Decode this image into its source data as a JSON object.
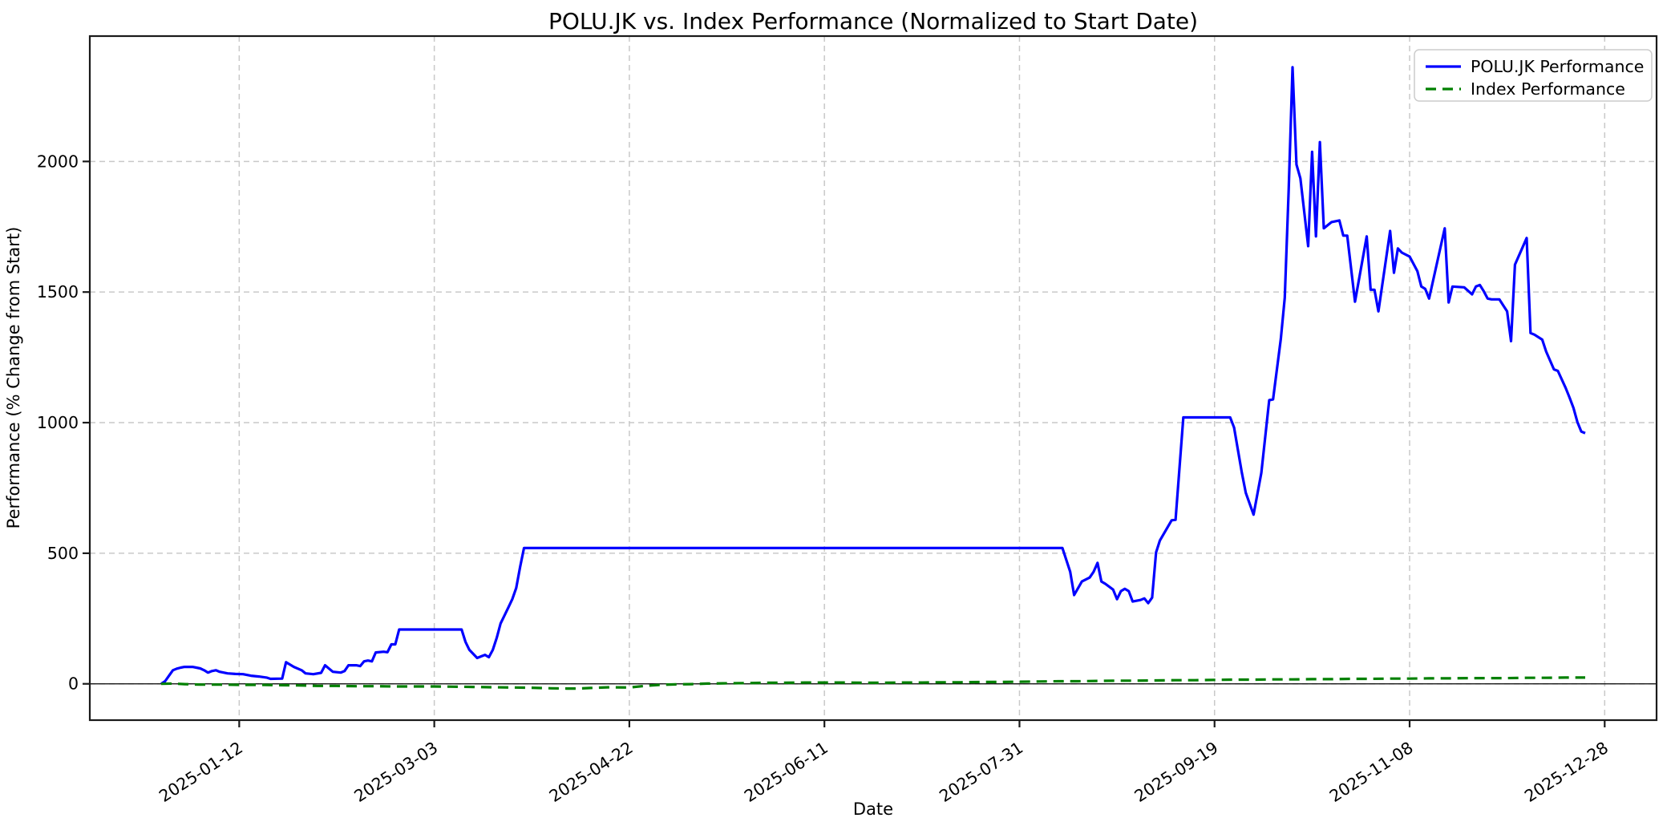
{
  "chart_data": {
    "type": "line",
    "title": "POLU.JK vs. Index Performance (Normalized to Start Date)",
    "xlabel": "Date",
    "ylabel": "Performance (% Change from Start)",
    "grid": true,
    "legend_position": "upper right",
    "background": "#ffffff",
    "grid_color": "#c9c9c9",
    "spine_color": "#1a1a1a",
    "zero_line_color": "#000000",
    "xlim_days": [
      -18.3,
      383.3
    ],
    "ylim": [
      -139,
      2480
    ],
    "x_ticks": [
      {
        "day": 20,
        "label": "2025-01-12"
      },
      {
        "day": 70,
        "label": "2025-03-03"
      },
      {
        "day": 120,
        "label": "2025-04-22"
      },
      {
        "day": 170,
        "label": "2025-06-11"
      },
      {
        "day": 220,
        "label": "2025-07-31"
      },
      {
        "day": 270,
        "label": "2025-09-19"
      },
      {
        "day": 320,
        "label": "2025-11-08"
      },
      {
        "day": 370,
        "label": "2025-12-28"
      }
    ],
    "y_ticks": [
      {
        "value": 0,
        "label": "0"
      },
      {
        "value": 500,
        "label": "500"
      },
      {
        "value": 1000,
        "label": "1000"
      },
      {
        "value": 1500,
        "label": "1500"
      },
      {
        "value": 2000,
        "label": "2000"
      }
    ],
    "series": [
      {
        "name": "POLU.JK Performance",
        "color": "#0000ff",
        "style": "solid",
        "points": [
          [
            0,
            0
          ],
          [
            1,
            10
          ],
          [
            2,
            31
          ],
          [
            3,
            52
          ],
          [
            4,
            58
          ],
          [
            5,
            62
          ],
          [
            6,
            65
          ],
          [
            8,
            65
          ],
          [
            9,
            62
          ],
          [
            10,
            59
          ],
          [
            11,
            52
          ],
          [
            12,
            43
          ],
          [
            13,
            49
          ],
          [
            14,
            52
          ],
          [
            15,
            46
          ],
          [
            17,
            40
          ],
          [
            19,
            38
          ],
          [
            21,
            37
          ],
          [
            23,
            31
          ],
          [
            25,
            28
          ],
          [
            27,
            24
          ],
          [
            28,
            19
          ],
          [
            31,
            20
          ],
          [
            32,
            83
          ],
          [
            34,
            65
          ],
          [
            36,
            52
          ],
          [
            37,
            40
          ],
          [
            39,
            37
          ],
          [
            41,
            42
          ],
          [
            42,
            71
          ],
          [
            44,
            46
          ],
          [
            46,
            43
          ],
          [
            47,
            49
          ],
          [
            48,
            71
          ],
          [
            50,
            71
          ],
          [
            51,
            68
          ],
          [
            52,
            86
          ],
          [
            53,
            89
          ],
          [
            54,
            86
          ],
          [
            55,
            120
          ],
          [
            57,
            123
          ],
          [
            58,
            121
          ],
          [
            59,
            151
          ],
          [
            60,
            151
          ],
          [
            61,
            208
          ],
          [
            77,
            208
          ],
          [
            78,
            160
          ],
          [
            79,
            130
          ],
          [
            81,
            99
          ],
          [
            82,
            105
          ],
          [
            83,
            111
          ],
          [
            84,
            102
          ],
          [
            85,
            130
          ],
          [
            86,
            176
          ],
          [
            87,
            231
          ],
          [
            88,
            262
          ],
          [
            89,
            293
          ],
          [
            90,
            324
          ],
          [
            91,
            367
          ],
          [
            92,
            448
          ],
          [
            93,
            520
          ],
          [
            231,
            520
          ],
          [
            233,
            429
          ],
          [
            234,
            340
          ],
          [
            236,
            392
          ],
          [
            238,
            407
          ],
          [
            239,
            429
          ],
          [
            240,
            463
          ],
          [
            241,
            392
          ],
          [
            242,
            383
          ],
          [
            244,
            361
          ],
          [
            245,
            324
          ],
          [
            246,
            355
          ],
          [
            247,
            364
          ],
          [
            248,
            355
          ],
          [
            249,
            315
          ],
          [
            251,
            321
          ],
          [
            252,
            327
          ],
          [
            253,
            309
          ],
          [
            254,
            330
          ],
          [
            255,
            503
          ],
          [
            256,
            549
          ],
          [
            259,
            626
          ],
          [
            260,
            628
          ],
          [
            262,
            1020
          ],
          [
            274,
            1020
          ],
          [
            275,
            981
          ],
          [
            276,
            895
          ],
          [
            277,
            808
          ],
          [
            278,
            731
          ],
          [
            280,
            648
          ],
          [
            282,
            808
          ],
          [
            284,
            1086
          ],
          [
            285,
            1089
          ],
          [
            287,
            1321
          ],
          [
            288,
            1478
          ],
          [
            289,
            1892
          ],
          [
            290,
            2361
          ],
          [
            291,
            1988
          ],
          [
            292,
            1935
          ],
          [
            294,
            1676
          ],
          [
            295,
            2037
          ],
          [
            296,
            1713
          ],
          [
            297,
            2074
          ],
          [
            298,
            1744
          ],
          [
            300,
            1768
          ],
          [
            302,
            1774
          ],
          [
            303,
            1716
          ],
          [
            304,
            1716
          ],
          [
            306,
            1463
          ],
          [
            309,
            1713
          ],
          [
            310,
            1509
          ],
          [
            311,
            1509
          ],
          [
            312,
            1426
          ],
          [
            315,
            1734
          ],
          [
            316,
            1574
          ],
          [
            317,
            1667
          ],
          [
            318,
            1651
          ],
          [
            320,
            1636
          ],
          [
            322,
            1580
          ],
          [
            323,
            1521
          ],
          [
            324,
            1512
          ],
          [
            325,
            1475
          ],
          [
            329,
            1744
          ],
          [
            330,
            1460
          ],
          [
            331,
            1521
          ],
          [
            334,
            1518
          ],
          [
            336,
            1491
          ],
          [
            337,
            1521
          ],
          [
            338,
            1527
          ],
          [
            339,
            1503
          ],
          [
            340,
            1475
          ],
          [
            341,
            1472
          ],
          [
            343,
            1472
          ],
          [
            345,
            1426
          ],
          [
            346,
            1312
          ],
          [
            347,
            1605
          ],
          [
            350,
            1707
          ],
          [
            351,
            1343
          ],
          [
            352,
            1337
          ],
          [
            354,
            1318
          ],
          [
            355,
            1272
          ],
          [
            357,
            1204
          ],
          [
            358,
            1198
          ],
          [
            360,
            1133
          ],
          [
            361,
            1096
          ],
          [
            362,
            1056
          ],
          [
            363,
            1003
          ],
          [
            364,
            966
          ],
          [
            365,
            960
          ]
        ]
      },
      {
        "name": "Index Performance",
        "color": "#008000",
        "style": "dashed",
        "points": [
          [
            0,
            0
          ],
          [
            3,
            1
          ],
          [
            6,
            -1
          ],
          [
            10,
            -3
          ],
          [
            15,
            -3
          ],
          [
            20,
            -4
          ],
          [
            25,
            -4
          ],
          [
            30,
            -5
          ],
          [
            35,
            -6
          ],
          [
            40,
            -8
          ],
          [
            45,
            -8
          ],
          [
            50,
            -9
          ],
          [
            55,
            -9
          ],
          [
            60,
            -10
          ],
          [
            65,
            -10
          ],
          [
            70,
            -10
          ],
          [
            75,
            -11
          ],
          [
            80,
            -12
          ],
          [
            85,
            -13
          ],
          [
            90,
            -14
          ],
          [
            95,
            -15
          ],
          [
            100,
            -17
          ],
          [
            104,
            -18
          ],
          [
            107,
            -18
          ],
          [
            110,
            -16
          ],
          [
            115,
            -13
          ],
          [
            120,
            -14
          ],
          [
            124,
            -8
          ],
          [
            128,
            -4
          ],
          [
            132,
            -2
          ],
          [
            136,
            -1
          ],
          [
            140,
            1
          ],
          [
            144,
            2
          ],
          [
            150,
            3
          ],
          [
            155,
            4
          ],
          [
            160,
            4
          ],
          [
            165,
            5
          ],
          [
            170,
            5
          ],
          [
            175,
            5
          ],
          [
            180,
            4
          ],
          [
            185,
            4
          ],
          [
            190,
            5
          ],
          [
            195,
            5
          ],
          [
            200,
            6
          ],
          [
            205,
            6
          ],
          [
            210,
            7
          ],
          [
            215,
            7
          ],
          [
            220,
            8
          ],
          [
            225,
            9
          ],
          [
            230,
            10
          ],
          [
            235,
            10
          ],
          [
            240,
            11
          ],
          [
            245,
            12
          ],
          [
            250,
            12
          ],
          [
            255,
            13
          ],
          [
            260,
            14
          ],
          [
            265,
            14
          ],
          [
            270,
            15
          ],
          [
            275,
            16
          ],
          [
            280,
            16
          ],
          [
            285,
            17
          ],
          [
            290,
            17
          ],
          [
            295,
            18
          ],
          [
            300,
            18
          ],
          [
            305,
            19
          ],
          [
            310,
            19
          ],
          [
            315,
            20
          ],
          [
            320,
            20
          ],
          [
            325,
            21
          ],
          [
            330,
            21
          ],
          [
            335,
            22
          ],
          [
            340,
            22
          ],
          [
            345,
            22
          ],
          [
            350,
            23
          ],
          [
            355,
            23
          ],
          [
            360,
            24
          ],
          [
            365,
            24
          ]
        ]
      }
    ]
  }
}
